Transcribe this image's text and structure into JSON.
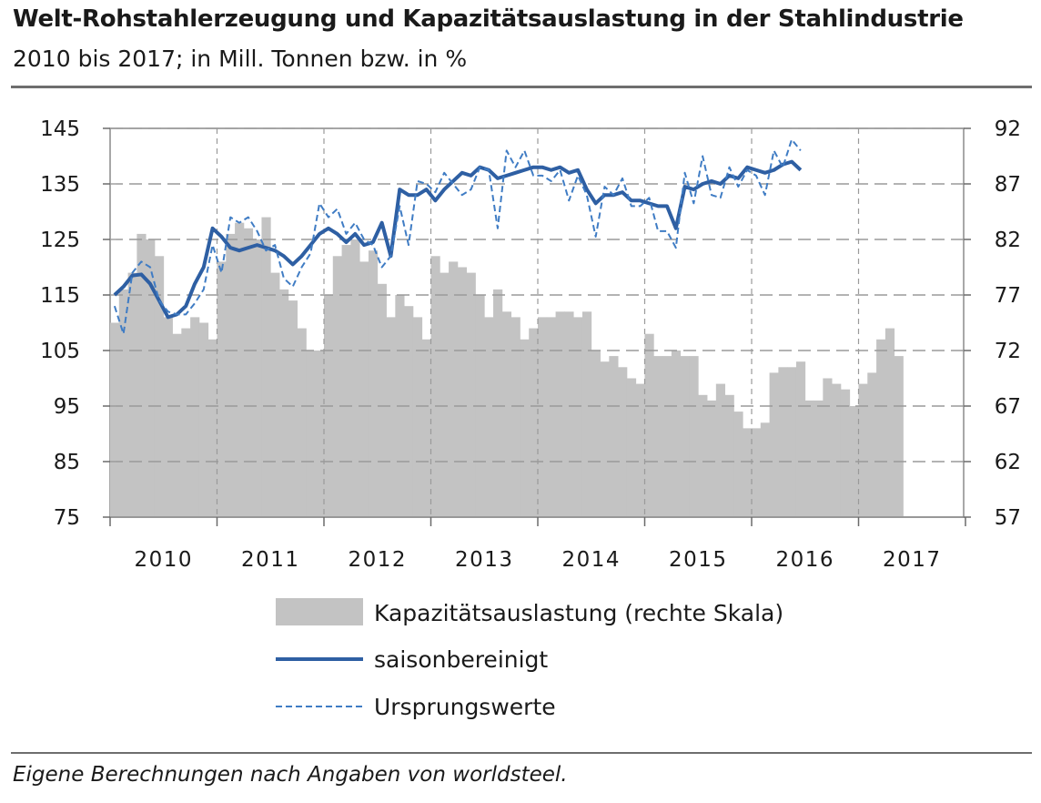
{
  "header": {
    "title": "Welt-Rohstahlerzeugung und Kapazitätsauslastung in der Stahlindustrie",
    "subtitle": "2010 bis 2017; in Mill. Tonnen bzw. in %"
  },
  "footer": {
    "source": "Eigene Berechnungen nach Angaben von worldsteel."
  },
  "colors": {
    "bars": "#c3c3c3",
    "line": "#2e5fa3",
    "dashed": "#3f7cc4",
    "grid": "#9a9a9a"
  },
  "chart_data": {
    "type": "bar+line",
    "x_labels": [
      "2010",
      "2011",
      "2012",
      "2013",
      "2014",
      "2015",
      "2016",
      "2017"
    ],
    "x_start": "2010-01",
    "y_left": {
      "ticks": [
        145,
        135,
        125,
        115,
        105,
        95,
        85,
        75
      ],
      "range": [
        75,
        145
      ]
    },
    "y_right": {
      "ticks": [
        92,
        87,
        82,
        77,
        72,
        67,
        62,
        57
      ],
      "range": [
        57,
        92
      ]
    },
    "grid": true,
    "legend_position": "bottom",
    "series": [
      {
        "name": "Kapazitätsauslastung (rechte Skala)",
        "axis": "right",
        "style": "bar",
        "values": [
          74.5,
          77.5,
          79,
          82.5,
          82,
          80.5,
          75,
          73.5,
          74,
          75,
          74.5,
          73,
          80,
          82.5,
          83.5,
          83,
          82,
          84,
          79,
          77.5,
          76.5,
          74,
          72,
          72,
          77,
          80.5,
          81.5,
          82,
          80,
          81,
          78,
          75,
          77,
          76,
          75,
          73,
          80.5,
          79,
          80,
          79.5,
          79,
          77,
          75,
          77.5,
          75.5,
          75,
          73,
          74,
          75,
          75,
          75.5,
          75.5,
          75,
          75.5,
          72,
          71,
          71.5,
          70.5,
          69.5,
          69,
          73.5,
          71.5,
          71.5,
          72,
          71.5,
          71.5,
          68,
          67.5,
          69,
          68,
          66.5,
          65,
          65,
          65.5,
          70,
          70.5,
          70.5,
          71,
          67.5,
          67.5,
          69.5,
          69,
          68.5,
          67,
          69,
          70,
          73,
          74,
          71.5
        ]
      },
      {
        "name": "saisonbereinigt",
        "axis": "left",
        "style": "solid",
        "values": [
          115,
          116.5,
          118.5,
          118.7,
          117,
          114,
          111,
          111.5,
          113,
          117,
          120,
          127,
          125.5,
          123.5,
          123,
          123.5,
          124,
          123.5,
          123,
          122,
          120.5,
          122,
          124,
          126,
          127,
          126,
          124.5,
          126,
          124,
          124.5,
          128,
          122,
          134,
          133,
          133,
          134,
          132,
          134,
          135.5,
          137,
          136.5,
          138,
          137.5,
          136,
          136.5,
          137,
          137.5,
          138,
          138,
          137.5,
          138,
          137,
          137.5,
          134,
          131.5,
          133,
          133,
          133.5,
          132,
          132,
          131.5,
          131,
          131,
          127,
          134.5,
          134,
          135,
          135.5,
          135,
          136.5,
          136,
          138,
          137.5,
          137,
          137.5,
          138.5,
          139,
          137.5
        ]
      },
      {
        "name": "Ursprungswerte",
        "axis": "left",
        "style": "dashed",
        "values": [
          113,
          108,
          119,
          121,
          120,
          114,
          112,
          111.5,
          111.5,
          113.5,
          116,
          124,
          119,
          129,
          128,
          129,
          126.5,
          123,
          124,
          118,
          116.5,
          120,
          122.5,
          131.5,
          129,
          130.5,
          126,
          128,
          125,
          124,
          120,
          122,
          131,
          124,
          135.5,
          135,
          133.5,
          137,
          135,
          133,
          134,
          138,
          137.5,
          127,
          141,
          138,
          141,
          136.5,
          136.5,
          135.5,
          137.5,
          132,
          136.5,
          133,
          125.5,
          134.5,
          133,
          136,
          131,
          131,
          132.5,
          126.5,
          126.5,
          123.5,
          137,
          131.5,
          140,
          133,
          132.5,
          138,
          134.5,
          137.5,
          136.5,
          133,
          141,
          138,
          143,
          141
        ]
      }
    ]
  }
}
